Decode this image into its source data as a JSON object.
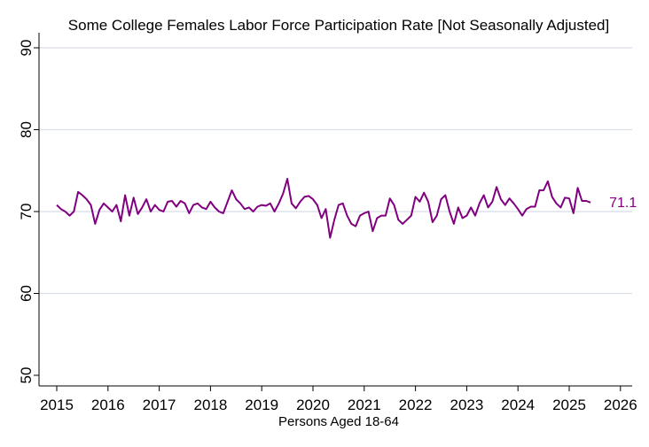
{
  "chart_data": {
    "type": "line",
    "title": "Some College Females Labor Force Participation Rate [Not Seasonally Adjusted]",
    "xlabel": "Persons Aged 18-64",
    "ylabel": "",
    "xlim": [
      2015,
      2026
    ],
    "ylim": [
      50,
      90
    ],
    "x_ticks": [
      "2015",
      "2016",
      "2017",
      "2018",
      "2019",
      "2020",
      "2021",
      "2022",
      "2023",
      "2024",
      "2025",
      "2026"
    ],
    "y_ticks": [
      "50",
      "60",
      "70",
      "80",
      "90"
    ],
    "grid": true,
    "line_color": "#800080",
    "gridline_color": "#d8dde6",
    "end_label": "71.1",
    "series": [
      {
        "start": "2015-01",
        "frequency": "monthly",
        "values": [
          70.8,
          70.3,
          70.0,
          69.5,
          70.0,
          72.4,
          72.0,
          71.5,
          70.8,
          68.5,
          70.2,
          71.0,
          70.5,
          70.0,
          70.8,
          68.8,
          72.0,
          69.5,
          71.7,
          69.7,
          70.5,
          71.5,
          70.0,
          70.8,
          70.2,
          70.0,
          71.2,
          71.3,
          70.6,
          71.3,
          71.0,
          69.8,
          70.8,
          71.0,
          70.5,
          70.3,
          71.2,
          70.5,
          70.0,
          69.8,
          71.2,
          72.6,
          71.5,
          71.0,
          70.3,
          70.5,
          70.0,
          70.6,
          70.8,
          70.7,
          71.0,
          70.0,
          71.0,
          72.2,
          74.0,
          71.0,
          70.4,
          71.2,
          71.8,
          71.9,
          71.5,
          70.8,
          69.2,
          70.3,
          66.8,
          69.0,
          70.8,
          71.0,
          69.5,
          68.5,
          68.2,
          69.5,
          69.8,
          70.0,
          67.6,
          69.2,
          69.5,
          69.5,
          71.6,
          70.8,
          69.0,
          68.5,
          69.0,
          69.5,
          71.8,
          71.2,
          72.3,
          71.2,
          68.7,
          69.5,
          71.5,
          72.0,
          70.0,
          68.5,
          70.5,
          69.2,
          69.5,
          70.5,
          69.5,
          71.0,
          72.0,
          70.5,
          71.2,
          73.0,
          71.5,
          70.8,
          71.6,
          71.0,
          70.3,
          69.5,
          70.3,
          70.6,
          70.6,
          72.6,
          72.6,
          73.7,
          71.8,
          71.0,
          70.5,
          71.7,
          71.6,
          69.8,
          72.9,
          71.3,
          71.3,
          71.1
        ]
      }
    ]
  }
}
